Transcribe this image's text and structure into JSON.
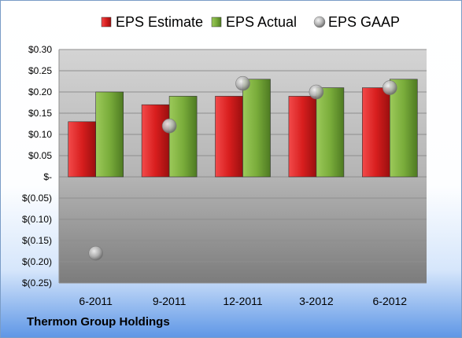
{
  "company": "Thermon Group Holdings",
  "chart_data": {
    "type": "bar",
    "categories": [
      "6-2011",
      "9-2011",
      "12-2011",
      "3-2012",
      "6-2012"
    ],
    "series": [
      {
        "name": "EPS Estimate",
        "kind": "bar",
        "color": "#d42020",
        "values": [
          0.13,
          0.17,
          0.19,
          0.19,
          0.21
        ]
      },
      {
        "name": "EPS Actual",
        "kind": "bar",
        "color": "#77a93a",
        "values": [
          0.2,
          0.19,
          0.23,
          0.21,
          0.23
        ]
      },
      {
        "name": "EPS GAAP",
        "kind": "marker",
        "color": "#b0b0b0",
        "values": [
          -0.18,
          0.12,
          0.22,
          0.2,
          0.21
        ]
      }
    ],
    "ylim": [
      -0.25,
      0.3
    ],
    "yticks": [
      0.3,
      0.25,
      0.2,
      0.15,
      0.1,
      0.05,
      0,
      -0.05,
      -0.1,
      -0.15,
      -0.2,
      -0.25
    ],
    "ytick_labels": [
      "$0.30",
      "$0.25",
      "$0.20",
      "$0.15",
      "$0.10",
      "$0.05",
      "$-",
      "$(0.05)",
      "$(0.10)",
      "$(0.15)",
      "$(0.20)",
      "$(0.25)"
    ],
    "grid": true,
    "legend_position": "top"
  }
}
